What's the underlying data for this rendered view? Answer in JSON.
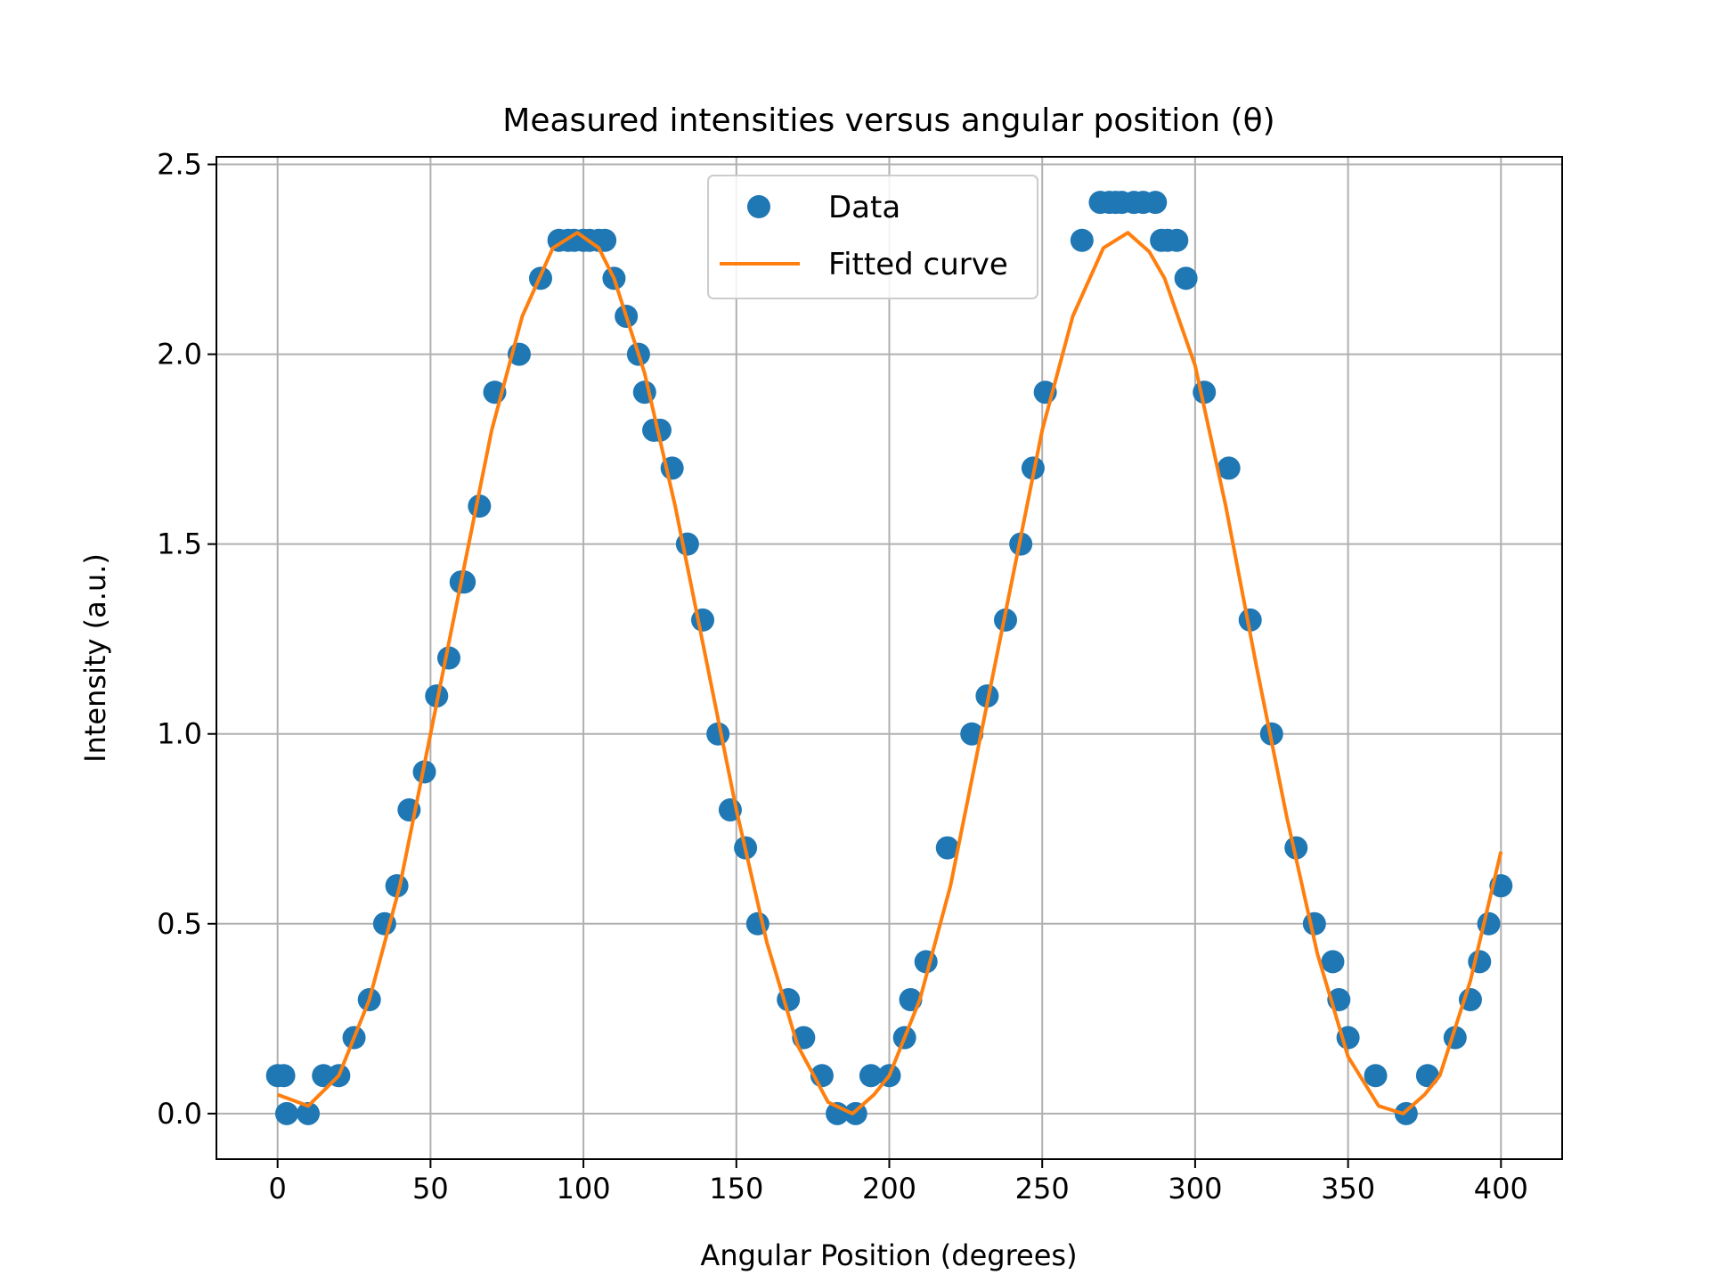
{
  "chart_data": {
    "type": "scatter",
    "title": "Measured intensities versus angular position (θ)",
    "xlabel": "Angular Position (degrees)",
    "ylabel": "Intensity (a.u.)",
    "xlim": [
      -20,
      420
    ],
    "ylim": [
      -0.12,
      2.52
    ],
    "xticks": [
      0,
      50,
      100,
      150,
      200,
      250,
      300,
      350,
      400
    ],
    "xtick_labels": [
      "0",
      "50",
      "100",
      "150",
      "200",
      "250",
      "300",
      "350",
      "400"
    ],
    "yticks": [
      0.0,
      0.5,
      1.0,
      1.5,
      2.0,
      2.5
    ],
    "ytick_labels": [
      "0.0",
      "0.5",
      "1.0",
      "1.5",
      "2.0",
      "2.5"
    ],
    "grid": true,
    "legend_position": "top-center",
    "series": [
      {
        "name": "Data",
        "kind": "scatter",
        "color": "#1f77b4",
        "x": [
          0,
          2,
          3,
          10,
          15,
          20,
          25,
          30,
          35,
          39,
          43,
          48,
          52,
          56,
          60,
          61,
          66,
          71,
          79,
          86,
          92,
          95,
          97,
          100,
          102,
          105,
          107,
          110,
          114,
          118,
          120,
          123,
          125,
          129,
          134,
          139,
          144,
          148,
          153,
          157,
          167,
          172,
          178,
          183,
          189,
          194,
          200,
          205,
          207,
          212,
          219,
          227,
          232,
          238,
          243,
          247,
          251,
          263,
          269,
          272,
          274,
          276,
          280,
          283,
          287,
          289,
          291,
          294,
          297,
          303,
          311,
          318,
          325,
          333,
          339,
          345,
          347,
          350,
          359,
          369,
          376,
          385,
          390,
          393,
          396,
          400
        ],
        "y": [
          0.1,
          0.1,
          0.0,
          0.0,
          0.1,
          0.1,
          0.2,
          0.3,
          0.5,
          0.6,
          0.8,
          0.9,
          1.1,
          1.2,
          1.4,
          1.4,
          1.6,
          1.9,
          2.0,
          2.2,
          2.3,
          2.3,
          2.3,
          2.3,
          2.3,
          2.3,
          2.3,
          2.2,
          2.1,
          2.0,
          1.9,
          1.8,
          1.8,
          1.7,
          1.5,
          1.3,
          1.0,
          0.8,
          0.7,
          0.5,
          0.3,
          0.2,
          0.1,
          0.0,
          0.0,
          0.1,
          0.1,
          0.2,
          0.3,
          0.4,
          0.7,
          1.0,
          1.1,
          1.3,
          1.5,
          1.7,
          1.9,
          2.3,
          2.4,
          2.4,
          2.4,
          2.4,
          2.4,
          2.4,
          2.4,
          2.3,
          2.3,
          2.3,
          2.2,
          1.9,
          1.7,
          1.3,
          1.0,
          0.7,
          0.5,
          0.4,
          0.3,
          0.2,
          0.1,
          0.0,
          0.1,
          0.2,
          0.3,
          0.4,
          0.5,
          0.6
        ]
      },
      {
        "name": "Fitted curve",
        "kind": "line",
        "color": "#ff7f0e",
        "x": [
          0,
          10,
          20,
          30,
          40,
          50,
          60,
          70,
          80,
          90,
          98,
          105,
          110,
          120,
          130,
          140,
          150,
          160,
          170,
          180,
          188,
          195,
          200,
          210,
          220,
          230,
          240,
          250,
          260,
          270,
          278,
          285,
          290,
          300,
          310,
          320,
          330,
          340,
          350,
          360,
          368,
          375,
          380,
          390,
          400
        ],
        "y": [
          0.05,
          0.02,
          0.1,
          0.3,
          0.6,
          1.0,
          1.4,
          1.8,
          2.1,
          2.28,
          2.32,
          2.28,
          2.2,
          1.95,
          1.6,
          1.2,
          0.8,
          0.45,
          0.18,
          0.03,
          0.0,
          0.05,
          0.1,
          0.3,
          0.6,
          1.0,
          1.4,
          1.8,
          2.1,
          2.28,
          2.32,
          2.27,
          2.2,
          1.97,
          1.6,
          1.18,
          0.78,
          0.42,
          0.15,
          0.02,
          0.0,
          0.05,
          0.1,
          0.35,
          0.69
        ]
      }
    ]
  }
}
